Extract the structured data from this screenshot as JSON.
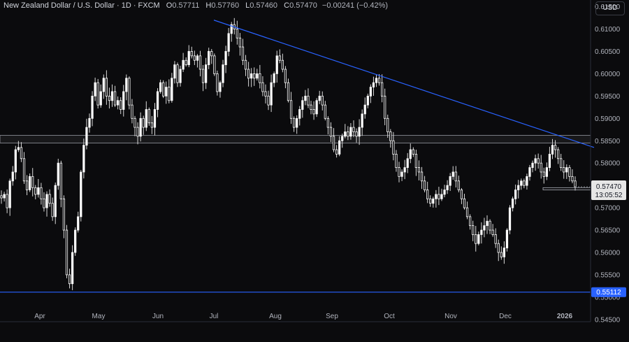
{
  "header": {
    "symbol": "New Zealand Dollar / U.S. Dollar · 1D · FXCM",
    "open_label": "O",
    "open": "0.57711",
    "high_label": "H",
    "high": "0.57760",
    "low_label": "L",
    "low": "0.57460",
    "close_label": "C",
    "close": "0.57470",
    "change": "−0.00241 (−0.42%)"
  },
  "currency_button": "USD",
  "price_tag": {
    "price": "0.57470",
    "countdown": "13:05:52"
  },
  "level_tag": "0.55112",
  "colors": {
    "background": "#0b0b0d",
    "candle": "#ffffff",
    "trendline": "#2962ff",
    "level_line": "#2962ff",
    "zone": "#b2b5be"
  },
  "chart_data": {
    "type": "candlestick",
    "y_axis": {
      "ticks": [
        "0.61500",
        "0.61000",
        "0.60500",
        "0.60000",
        "0.59500",
        "0.59000",
        "0.58500",
        "0.58000",
        "0.57500",
        "0.57000",
        "0.56500",
        "0.56000",
        "0.55500",
        "0.55000",
        "0.54500"
      ],
      "range": [
        0.5445,
        0.6165
      ]
    },
    "x_axis": {
      "ticks": [
        "Apr",
        "May",
        "Jun",
        "Jul",
        "Aug",
        "Sep",
        "Oct",
        "Nov",
        "Dec",
        "2026"
      ]
    },
    "trendline": {
      "start": [
        "Jul",
        0.612
      ],
      "end": [
        "2026",
        0.584
      ]
    },
    "horizontal_levels": [
      0.55112
    ],
    "resistance_zone": [
      0.5845,
      0.5862
    ],
    "support_box": [
      0.574,
      0.5745
    ],
    "path": [
      0.5722,
      0.573,
      0.57,
      0.576,
      0.578,
      0.583,
      0.5835,
      0.581,
      0.576,
      0.574,
      0.577,
      0.5745,
      0.573,
      0.5745,
      0.572,
      0.57,
      0.573,
      0.571,
      0.568,
      0.575,
      0.58,
      0.572,
      0.565,
      0.555,
      0.553,
      0.56,
      0.565,
      0.568,
      0.578,
      0.584,
      0.588,
      0.59,
      0.595,
      0.598,
      0.593,
      0.596,
      0.599,
      0.595,
      0.594,
      0.596,
      0.593,
      0.594,
      0.592,
      0.596,
      0.599,
      0.593,
      0.59,
      0.588,
      0.586,
      0.59,
      0.588,
      0.592,
      0.589,
      0.588,
      0.592,
      0.596,
      0.598,
      0.595,
      0.597,
      0.594,
      0.599,
      0.602,
      0.598,
      0.601,
      0.603,
      0.602,
      0.605,
      0.604,
      0.603,
      0.604,
      0.601,
      0.598,
      0.602,
      0.605,
      0.604,
      0.6,
      0.596,
      0.598,
      0.602,
      0.605,
      0.609,
      0.611,
      0.61,
      0.608,
      0.606,
      0.603,
      0.601,
      0.599,
      0.6,
      0.599,
      0.6,
      0.598,
      0.596,
      0.595,
      0.593,
      0.598,
      0.6,
      0.604,
      0.603,
      0.601,
      0.598,
      0.594,
      0.59,
      0.588,
      0.59,
      0.592,
      0.594,
      0.595,
      0.593,
      0.592,
      0.591,
      0.594,
      0.595,
      0.593,
      0.59,
      0.588,
      0.586,
      0.583,
      0.582,
      0.585,
      0.586,
      0.587,
      0.586,
      0.588,
      0.587,
      0.586,
      0.588,
      0.591,
      0.593,
      0.595,
      0.597,
      0.598,
      0.599,
      0.598,
      0.595,
      0.59,
      0.587,
      0.585,
      0.582,
      0.579,
      0.577,
      0.578,
      0.579,
      0.581,
      0.583,
      0.582,
      0.579,
      0.578,
      0.576,
      0.574,
      0.572,
      0.571,
      0.572,
      0.573,
      0.572,
      0.573,
      0.574,
      0.575,
      0.577,
      0.578,
      0.576,
      0.574,
      0.572,
      0.57,
      0.568,
      0.566,
      0.564,
      0.562,
      0.564,
      0.565,
      0.566,
      0.567,
      0.565,
      0.564,
      0.562,
      0.56,
      0.559,
      0.561,
      0.565,
      0.57,
      0.572,
      0.574,
      0.575,
      0.576,
      0.575,
      0.577,
      0.579,
      0.58,
      0.581,
      0.58,
      0.578,
      0.577,
      0.579,
      0.582,
      0.584,
      0.583,
      0.581,
      0.579,
      0.578,
      0.579,
      0.577,
      0.576,
      0.5747
    ]
  }
}
